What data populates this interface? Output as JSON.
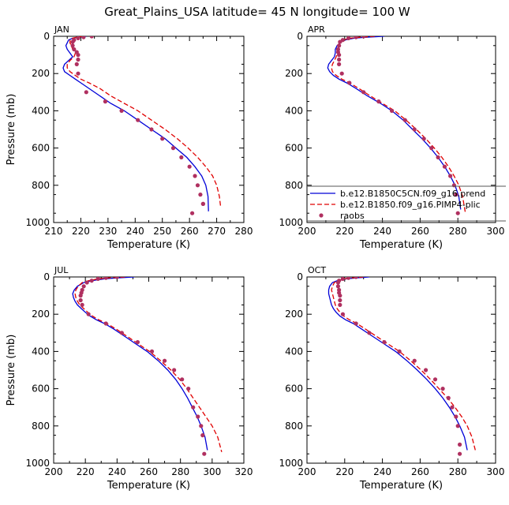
{
  "figure": {
    "title": "Great_Plains_USA   latitude= 45 N longitude= 100 W"
  },
  "colors": {
    "model1": "#0000d8",
    "model2": "#e00000",
    "obs": "#b03060"
  },
  "chart_data": [
    {
      "type": "line",
      "panel_label": "JAN",
      "xlabel": "Temperature (K)",
      "ylabel": "Pressure (mb)",
      "xlim": [
        210,
        280
      ],
      "ylim": [
        1000,
        0
      ],
      "y_reversed": true,
      "xticks": [
        "210",
        "220",
        "230",
        "240",
        "250",
        "260",
        "270",
        "280"
      ],
      "yticks": [
        "0",
        "200",
        "400",
        "600",
        "800",
        "1000"
      ],
      "legend": null,
      "series": [
        {
          "style": "solid",
          "x": [
            222,
            219,
            217,
            215.5,
            215,
            214.5,
            215,
            216,
            217,
            215.5,
            214,
            213.5,
            214,
            216,
            218,
            220,
            223,
            227,
            231,
            236,
            241,
            246,
            251,
            255,
            259,
            262,
            264.5,
            266,
            266.8,
            267
          ],
          "y": [
            0,
            5,
            10,
            20,
            35,
            50,
            70,
            90,
            110,
            130,
            150,
            170,
            190,
            210,
            230,
            250,
            280,
            320,
            360,
            400,
            450,
            500,
            550,
            600,
            650,
            700,
            750,
            800,
            860,
            940
          ]
        },
        {
          "style": "dashed",
          "x": [
            221,
            218.5,
            217,
            216,
            216,
            216.5,
            217,
            218,
            217.5,
            216,
            215,
            215,
            216,
            218,
            220,
            223,
            227,
            231,
            236,
            241,
            246,
            251,
            255.5,
            259.5,
            263,
            266,
            268.5,
            270,
            271,
            271.5
          ],
          "y": [
            0,
            5,
            10,
            20,
            35,
            50,
            70,
            90,
            110,
            130,
            150,
            170,
            190,
            210,
            230,
            250,
            280,
            320,
            360,
            400,
            450,
            500,
            550,
            600,
            650,
            700,
            750,
            800,
            860,
            920
          ]
        },
        {
          "style": "points",
          "x": [
            224,
            221,
            219,
            217.5,
            217,
            217,
            217.5,
            218.5,
            219,
            219,
            218.5,
            219,
            222,
            229,
            235,
            241,
            246,
            250,
            254,
            257,
            260,
            262,
            263,
            264,
            265,
            265,
            261
          ],
          "y": [
            0,
            5,
            10,
            20,
            30,
            50,
            70,
            85,
            100,
            125,
            150,
            200,
            300,
            350,
            400,
            450,
            500,
            550,
            600,
            650,
            700,
            750,
            800,
            850,
            900,
            900,
            950
          ]
        }
      ]
    },
    {
      "type": "line",
      "panel_label": "APR",
      "xlabel": "Temperature (K)",
      "ylabel": "",
      "xlim": [
        200,
        300
      ],
      "ylim": [
        1000,
        0
      ],
      "y_reversed": true,
      "xticks": [
        "200",
        "220",
        "240",
        "260",
        "280",
        "300"
      ],
      "yticks": [
        "0",
        "200",
        "400",
        "600",
        "800",
        "1000"
      ],
      "legend": {
        "placement": "lower-right",
        "entries": [
          "b.e12.B1850C5CN.f09_g16.prend",
          "b.e12.B1850.f09_g16.PIMP4-plic",
          "raobs"
        ]
      },
      "series": [
        {
          "style": "solid",
          "x": [
            241,
            231,
            225,
            220,
            218,
            216,
            215,
            215,
            214.5,
            213,
            211.5,
            211,
            212,
            214,
            217,
            221,
            226,
            232,
            239,
            245,
            251,
            256,
            261,
            265.5,
            269.5,
            273,
            276,
            278.5,
            280.5,
            281.5
          ],
          "y": [
            0,
            5,
            10,
            20,
            30,
            50,
            70,
            90,
            110,
            130,
            150,
            170,
            190,
            210,
            230,
            250,
            280,
            320,
            360,
            400,
            450,
            500,
            550,
            600,
            650,
            700,
            750,
            800,
            860,
            930
          ]
        },
        {
          "style": "dashed",
          "x": [
            236,
            228,
            223,
            219,
            217.5,
            216.5,
            216,
            216,
            215.5,
            214.5,
            213.5,
            213,
            213.5,
            215.5,
            218.5,
            222.5,
            227.5,
            233.5,
            240,
            246.5,
            252.5,
            258,
            263,
            267.5,
            271.5,
            275,
            278,
            280.5,
            282.5,
            284
          ],
          "y": [
            0,
            5,
            10,
            20,
            30,
            50,
            70,
            90,
            110,
            130,
            150,
            170,
            190,
            210,
            230,
            250,
            280,
            320,
            360,
            400,
            450,
            500,
            550,
            600,
            650,
            700,
            750,
            800,
            860,
            950
          ]
        },
        {
          "style": "points",
          "x": [
            230,
            226,
            222,
            219,
            217.5,
            217,
            216.5,
            216.5,
            217,
            217,
            217,
            218.5,
            222.5,
            230,
            238,
            245,
            252,
            257,
            262,
            266,
            269.5,
            273,
            276,
            278,
            279,
            280
          ],
          "y": [
            0,
            5,
            10,
            20,
            30,
            50,
            70,
            85,
            100,
            125,
            150,
            200,
            250,
            300,
            350,
            400,
            450,
            500,
            550,
            600,
            650,
            700,
            750,
            800,
            850,
            950
          ]
        }
      ]
    },
    {
      "type": "line",
      "panel_label": "JUL",
      "xlabel": "Temperature (K)",
      "ylabel": "Pressure (mb)",
      "xlim": [
        200,
        320
      ],
      "ylim": [
        1000,
        0
      ],
      "y_reversed": true,
      "xticks": [
        "200",
        "220",
        "240",
        "260",
        "280",
        "300",
        "320"
      ],
      "yticks": [
        "0",
        "200",
        "400",
        "600",
        "800",
        "1000"
      ],
      "legend": null,
      "series": [
        {
          "style": "solid",
          "x": [
            251,
            240,
            232,
            224,
            219,
            215,
            213,
            212,
            212.5,
            213.5,
            215,
            217.5,
            220,
            223,
            227,
            232,
            238,
            245,
            252,
            259,
            266,
            272,
            277,
            281,
            284.5,
            287.5,
            290.5,
            293,
            295.5,
            297
          ],
          "y": [
            0,
            5,
            10,
            20,
            30,
            50,
            70,
            90,
            110,
            130,
            150,
            170,
            190,
            210,
            230,
            250,
            280,
            320,
            360,
            400,
            450,
            500,
            550,
            600,
            650,
            700,
            750,
            800,
            860,
            930
          ]
        },
        {
          "style": "dashed",
          "x": [
            245,
            235,
            228,
            222,
            218,
            215.5,
            214,
            213.5,
            214,
            215,
            216.5,
            219,
            221.5,
            224.5,
            228.5,
            233.5,
            239.5,
            246.5,
            253.5,
            260.5,
            267.5,
            274,
            279.5,
            284,
            288,
            292,
            296,
            300,
            303.5,
            306
          ],
          "y": [
            0,
            5,
            10,
            20,
            30,
            50,
            70,
            90,
            110,
            130,
            150,
            170,
            190,
            210,
            230,
            250,
            280,
            320,
            360,
            400,
            450,
            500,
            550,
            600,
            650,
            700,
            750,
            800,
            860,
            940
          ]
        },
        {
          "style": "points",
          "x": [
            240,
            233,
            228,
            224,
            221,
            219,
            218,
            217.5,
            217,
            217,
            218,
            222,
            233,
            243,
            253,
            262,
            270,
            276,
            281,
            285,
            288,
            291,
            293,
            294,
            295
          ],
          "y": [
            0,
            5,
            10,
            20,
            30,
            50,
            70,
            85,
            100,
            125,
            150,
            200,
            250,
            300,
            350,
            400,
            450,
            500,
            550,
            600,
            700,
            750,
            800,
            850,
            950
          ]
        }
      ]
    },
    {
      "type": "line",
      "panel_label": "OCT",
      "xlabel": "Temperature (K)",
      "ylabel": "",
      "xlim": [
        200,
        300
      ],
      "ylim": [
        1000,
        0
      ],
      "y_reversed": true,
      "xticks": [
        "200",
        "220",
        "240",
        "260",
        "280",
        "300"
      ],
      "yticks": [
        "0",
        "200",
        "400",
        "600",
        "800",
        "1000"
      ],
      "legend": null,
      "series": [
        {
          "style": "solid",
          "x": [
            233,
            226,
            221,
            216,
            213.5,
            212,
            211.5,
            211.5,
            212,
            212.5,
            213,
            214,
            215.5,
            217.5,
            220.5,
            224.5,
            229,
            235,
            241,
            247,
            253,
            258.5,
            263.5,
            268,
            272,
            275.5,
            278.5,
            281,
            283.5,
            285
          ],
          "y": [
            0,
            5,
            10,
            20,
            30,
            50,
            70,
            90,
            110,
            130,
            150,
            170,
            190,
            210,
            230,
            250,
            280,
            320,
            360,
            400,
            450,
            500,
            550,
            600,
            650,
            700,
            750,
            800,
            860,
            930
          ]
        },
        {
          "style": "dashed",
          "x": [
            230,
            224,
            220,
            216.5,
            214.5,
            213.5,
            213,
            213.5,
            214,
            214.5,
            215,
            216,
            217.5,
            219.5,
            222.5,
            226.5,
            231,
            237,
            243,
            249,
            255,
            260.5,
            265.5,
            270,
            274.5,
            278.5,
            282,
            285,
            287.5,
            289.5
          ],
          "y": [
            0,
            5,
            10,
            20,
            30,
            50,
            70,
            90,
            110,
            130,
            150,
            170,
            190,
            210,
            230,
            250,
            280,
            320,
            360,
            400,
            450,
            500,
            550,
            600,
            650,
            700,
            750,
            800,
            860,
            940
          ]
        },
        {
          "style": "points",
          "x": [
            226,
            222,
            219,
            217,
            216.5,
            216.5,
            217,
            217,
            217.5,
            217.5,
            217.5,
            219,
            226,
            233,
            241,
            249,
            257,
            263,
            268,
            272,
            275,
            277,
            279,
            280,
            281,
            281
          ],
          "y": [
            0,
            5,
            10,
            20,
            30,
            50,
            70,
            85,
            100,
            125,
            150,
            200,
            250,
            300,
            350,
            400,
            450,
            500,
            550,
            600,
            650,
            700,
            750,
            800,
            900,
            950
          ]
        }
      ]
    }
  ]
}
